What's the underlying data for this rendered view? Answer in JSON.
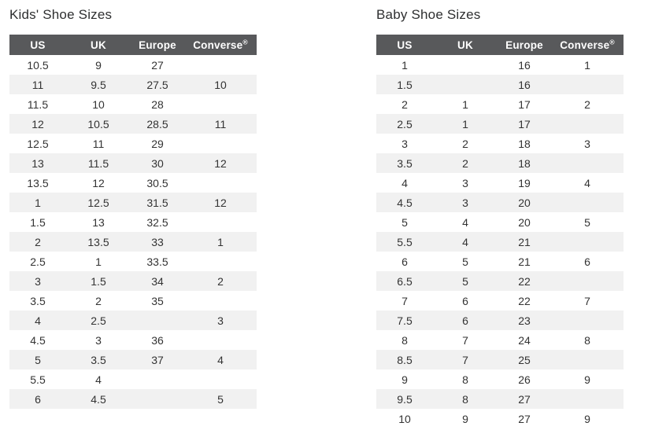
{
  "colors": {
    "header_bg": "#58595b",
    "header_text": "#ffffff",
    "row_alt_bg": "#f1f1f1",
    "body_text": "#333333",
    "title_text": "#2e2f30"
  },
  "tables": [
    {
      "title": "Kids' Shoe Sizes",
      "columns": [
        "US",
        "UK",
        "Europe",
        "Converse®"
      ],
      "rows": [
        [
          "10.5",
          "9",
          "27",
          ""
        ],
        [
          "11",
          "9.5",
          "27.5",
          "10"
        ],
        [
          "11.5",
          "10",
          "28",
          ""
        ],
        [
          "12",
          "10.5",
          "28.5",
          "11"
        ],
        [
          "12.5",
          "11",
          "29",
          ""
        ],
        [
          "13",
          "11.5",
          "30",
          "12"
        ],
        [
          "13.5",
          "12",
          "30.5",
          ""
        ],
        [
          "1",
          "12.5",
          "31.5",
          "12"
        ],
        [
          "1.5",
          "13",
          "32.5",
          ""
        ],
        [
          "2",
          "13.5",
          "33",
          "1"
        ],
        [
          "2.5",
          "1",
          "33.5",
          ""
        ],
        [
          "3",
          "1.5",
          "34",
          "2"
        ],
        [
          "3.5",
          "2",
          "35",
          ""
        ],
        [
          "4",
          "2.5",
          "",
          "3"
        ],
        [
          "4.5",
          "3",
          "36",
          ""
        ],
        [
          "5",
          "3.5",
          "37",
          "4"
        ],
        [
          "5.5",
          "4",
          "",
          ""
        ],
        [
          "6",
          "4.5",
          "",
          "5"
        ]
      ]
    },
    {
      "title": "Baby Shoe Sizes",
      "columns": [
        "US",
        "UK",
        "Europe",
        "Converse®"
      ],
      "rows": [
        [
          "1",
          "",
          "16",
          "1"
        ],
        [
          "1.5",
          "",
          "16",
          ""
        ],
        [
          "2",
          "1",
          "17",
          "2"
        ],
        [
          "2.5",
          "1",
          "17",
          ""
        ],
        [
          "3",
          "2",
          "18",
          "3"
        ],
        [
          "3.5",
          "2",
          "18",
          ""
        ],
        [
          "4",
          "3",
          "19",
          "4"
        ],
        [
          "4.5",
          "3",
          "20",
          ""
        ],
        [
          "5",
          "4",
          "20",
          "5"
        ],
        [
          "5.5",
          "4",
          "21",
          ""
        ],
        [
          "6",
          "5",
          "21",
          "6"
        ],
        [
          "6.5",
          "5",
          "22",
          ""
        ],
        [
          "7",
          "6",
          "22",
          "7"
        ],
        [
          "7.5",
          "6",
          "23",
          ""
        ],
        [
          "8",
          "7",
          "24",
          "8"
        ],
        [
          "8.5",
          "7",
          "25",
          ""
        ],
        [
          "9",
          "8",
          "26",
          "9"
        ],
        [
          "9.5",
          "8",
          "27",
          ""
        ],
        [
          "10",
          "9",
          "27",
          "9"
        ]
      ]
    }
  ]
}
